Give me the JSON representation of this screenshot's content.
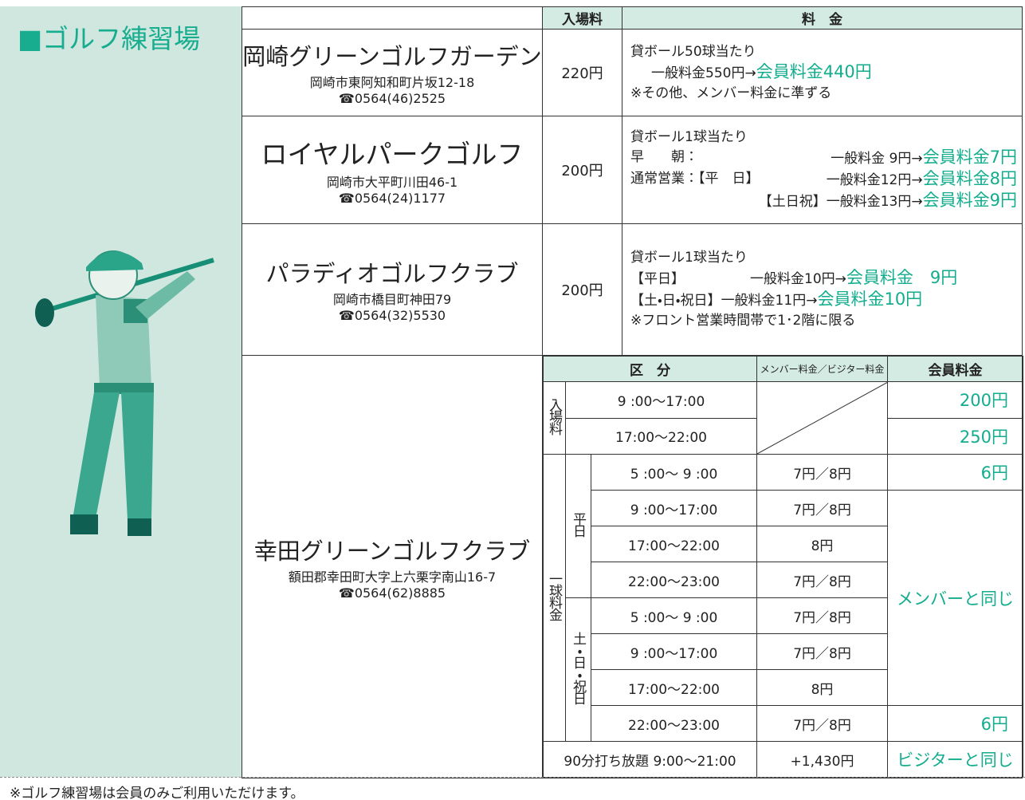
{
  "header": {
    "title": "■ゴルフ練習場"
  },
  "table": {
    "columns": [
      "入場料",
      "料　金"
    ],
    "venues": [
      {
        "name": "岡崎グリーンゴルフガーデン",
        "address": "岡崎市東阿知和町片坂12-18",
        "tel": "☎0564(46)2525",
        "fee": "220円",
        "lines": [
          "貸ボール50球当たり",
          {
            "general": "一般料金550円→",
            "member": "会員料金440円"
          },
          "※その他、メンバー料金に準ずる"
        ]
      },
      {
        "name": "ロイヤルパークゴルフ",
        "address": "岡崎市大平町川田46-1",
        "tel": "☎0564(24)1177",
        "fee": "200円",
        "lines": [
          "貸ボール1球当たり",
          {
            "label": "早　　朝：",
            "general": "一般料金 9円→",
            "member": "会員料金7円"
          },
          {
            "label": "通常営業：【平　日】",
            "general": "一般料金12円→",
            "member": "会員料金8円"
          },
          {
            "label": "【土日祝】",
            "general": "一般料金13円→",
            "member": "会員料金9円"
          }
        ]
      },
      {
        "name": "パラディオゴルフクラブ",
        "address": "岡崎市橋目町神田79",
        "tel": "☎0564(32)5530",
        "fee": "200円",
        "lines": [
          "貸ボール1球当たり",
          {
            "label": "【平日】",
            "general": "一般料金10円→",
            "member": "会員料金　9円"
          },
          {
            "label": "【土・日・祝日】",
            "general": "一般料金11円→",
            "member": "会員料金10円"
          },
          "※フロント営業時間帯で1･2階に限る"
        ]
      },
      {
        "name": "幸田グリーンゴルフクラブ",
        "address": "額田郡幸田町大字上六栗字南山16-7",
        "tel": "☎0564(62)8885",
        "schedule": {
          "headers": [
            "区　分",
            "メンバー料金／ビジター料金",
            "会員料金"
          ],
          "entry_label": "入場料",
          "entry_rows": [
            {
              "time": "9 :00〜17:00",
              "member_fee": "200円"
            },
            {
              "time": "17:00〜22:00",
              "member_fee": "250円"
            }
          ],
          "ball_label": "一球料金",
          "groups": [
            {
              "label": "平日",
              "rows": [
                {
                  "time": "5 :00〜 9 :00",
                  "price": "7円／8円"
                },
                {
                  "time": "9 :00〜17:00",
                  "price": "7円／8円"
                },
                {
                  "time": "17:00〜22:00",
                  "price": "8円"
                },
                {
                  "time": "22:00〜23:00",
                  "price": "7円／8円"
                }
              ]
            },
            {
              "label": "土・日・祝日",
              "rows": [
                {
                  "time": "5 :00〜 9 :00",
                  "price": "7円／8円"
                },
                {
                  "time": "9 :00〜17:00",
                  "price": "7円／8円"
                },
                {
                  "time": "17:00〜22:00",
                  "price": "8円"
                },
                {
                  "time": "22:00〜23:00",
                  "price": "7円／8円"
                }
              ]
            }
          ],
          "ball_member_fees": [
            "6円",
            "メンバーと同じ",
            "6円"
          ],
          "unlimited": {
            "label": "90分打ち放題 9:00〜21:00",
            "price": "+1,430円",
            "member_fee": "ビジターと同じ"
          }
        }
      }
    ]
  },
  "footnote": "※ゴルフ練習場は会員のみご利用いただけます。"
}
